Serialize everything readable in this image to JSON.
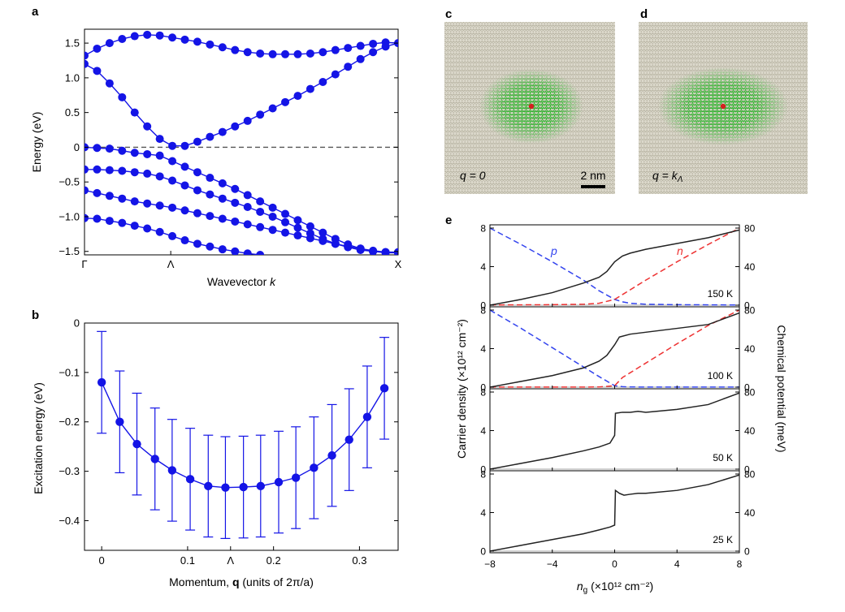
{
  "figure_title": "",
  "chart_data": [
    {
      "id": "a",
      "type": "line",
      "panel_label": "a",
      "xlabel": "Wavevector",
      "xlabel_italic": "k",
      "ylabel": "Energy (eV)",
      "ylim": [
        -1.55,
        1.7
      ],
      "xlim": [
        0,
        20
      ],
      "xticks": [
        {
          "x": 0,
          "label": "Γ"
        },
        {
          "x": 5.5,
          "label": "Λ"
        },
        {
          "x": 20,
          "label": "X"
        }
      ],
      "yticks": [
        {
          "v": 1.5,
          "label": "1.5"
        },
        {
          "v": 1.0,
          "label": "1.0"
        },
        {
          "v": 0.5,
          "label": "0.5"
        },
        {
          "v": 0,
          "label": "0"
        },
        {
          "v": -0.5,
          "label": "−0.5"
        },
        {
          "v": -1.0,
          "label": "−1.0"
        },
        {
          "v": -1.5,
          "label": "−1.5"
        }
      ],
      "reference_line": 0,
      "series": [
        {
          "x": [
            0,
            0.8,
            1.6,
            2.4,
            3.2,
            4.0,
            4.8,
            5.6,
            6.4,
            7.2,
            8.0,
            8.8,
            9.6,
            10.4,
            11.2,
            12.0,
            12.8,
            13.6,
            14.4,
            15.2,
            16.0,
            16.8,
            17.6,
            18.4,
            19.2,
            20
          ],
          "y": [
            1.32,
            1.42,
            1.5,
            1.56,
            1.6,
            1.62,
            1.61,
            1.58,
            1.55,
            1.52,
            1.48,
            1.44,
            1.4,
            1.37,
            1.35,
            1.34,
            1.34,
            1.34,
            1.35,
            1.37,
            1.4,
            1.43,
            1.46,
            1.49,
            1.51,
            1.5
          ]
        },
        {
          "x": [
            0,
            0.8,
            1.6,
            2.4,
            3.2,
            4.0,
            4.8,
            5.6,
            6.4,
            7.2,
            8.0,
            8.8,
            9.6,
            10.4,
            11.2,
            12.0,
            12.8,
            13.6,
            14.4,
            15.2,
            16.0,
            16.8,
            17.6,
            18.4,
            19.2,
            20
          ],
          "y": [
            1.2,
            1.1,
            0.92,
            0.72,
            0.5,
            0.3,
            0.12,
            0.02,
            0.02,
            0.08,
            0.15,
            0.22,
            0.3,
            0.38,
            0.47,
            0.56,
            0.65,
            0.74,
            0.84,
            0.94,
            1.05,
            1.16,
            1.27,
            1.37,
            1.45,
            1.5
          ]
        },
        {
          "x": [
            0,
            0.8,
            1.6,
            2.4,
            3.2,
            4.0,
            4.8,
            5.6,
            6.4,
            7.2,
            8.0,
            8.8,
            9.6,
            10.4,
            11.2,
            12.0,
            12.8,
            13.6,
            14.4,
            15.2,
            16.0,
            16.8,
            17.6,
            18.4,
            19.2,
            20
          ],
          "y": [
            0,
            -0.01,
            -0.02,
            -0.05,
            -0.08,
            -0.1,
            -0.12,
            -0.2,
            -0.28,
            -0.36,
            -0.44,
            -0.52,
            -0.6,
            -0.69,
            -0.78,
            -0.87,
            -0.96,
            -1.05,
            -1.14,
            -1.23,
            -1.32,
            -1.4,
            -1.46,
            -1.5,
            -1.52,
            -1.52
          ]
        },
        {
          "x": [
            0,
            0.8,
            1.6,
            2.4,
            3.2,
            4.0,
            4.8,
            5.6,
            6.4,
            7.2,
            8.0,
            8.8,
            9.6,
            10.4,
            11.2,
            12.0,
            12.8,
            13.6,
            14.4,
            15.2,
            16.0,
            16.8,
            17.6,
            18.4,
            19.2,
            20
          ],
          "y": [
            -0.32,
            -0.32,
            -0.33,
            -0.34,
            -0.36,
            -0.38,
            -0.42,
            -0.48,
            -0.55,
            -0.62,
            -0.68,
            -0.74,
            -0.8,
            -0.86,
            -0.93,
            -1.0,
            -1.08,
            -1.16,
            -1.24,
            -1.32,
            -1.39,
            -1.44,
            -1.48,
            -1.5,
            -1.51,
            -1.51
          ]
        },
        {
          "x": [
            0,
            0.8,
            1.6,
            2.4,
            3.2,
            4.0,
            4.8,
            5.6,
            6.4,
            7.2,
            8.0,
            8.8,
            9.6,
            10.4,
            11.2,
            12.0,
            12.8,
            13.6,
            14.4,
            15.2,
            16.0,
            16.8,
            17.6,
            18.4,
            19.2,
            20
          ],
          "y": [
            -0.62,
            -0.66,
            -0.7,
            -0.74,
            -0.78,
            -0.81,
            -0.84,
            -0.87,
            -0.91,
            -0.95,
            -0.99,
            -1.03,
            -1.07,
            -1.11,
            -1.15,
            -1.19,
            -1.23,
            -1.27,
            -1.31,
            -1.35,
            -1.39,
            -1.43,
            -1.46,
            -1.49,
            -1.51,
            -1.52
          ]
        },
        {
          "x": [
            0,
            0.8,
            1.6,
            2.4,
            3.2,
            4.0,
            4.8,
            5.6,
            6.4,
            7.2,
            8.0,
            8.8,
            9.6,
            10.4,
            11.2
          ],
          "y": [
            -1.02,
            -1.03,
            -1.06,
            -1.09,
            -1.13,
            -1.17,
            -1.22,
            -1.28,
            -1.34,
            -1.39,
            -1.43,
            -1.47,
            -1.5,
            -1.53,
            -1.55
          ]
        }
      ]
    },
    {
      "id": "b",
      "type": "scatter",
      "panel_label": "b",
      "xlabel": "Momentum, ",
      "xlabel_bold": "q",
      "xlabel_units": " (units of 2π/a)",
      "ylabel": "Excitation energy (eV)",
      "xlim": [
        -0.02,
        0.345
      ],
      "ylim": [
        -0.46,
        0
      ],
      "xticks": [
        {
          "v": 0,
          "label": "0"
        },
        {
          "v": 0.1,
          "label": "0.1"
        },
        {
          "v": 0.15,
          "label": "Λ"
        },
        {
          "v": 0.2,
          "label": "0.2"
        },
        {
          "v": 0.3,
          "label": "0.3"
        }
      ],
      "yticks": [
        {
          "v": 0,
          "label": "0"
        },
        {
          "v": -0.1,
          "label": "−0.1"
        },
        {
          "v": -0.2,
          "label": "−0.2"
        },
        {
          "v": -0.3,
          "label": "−0.3"
        },
        {
          "v": -0.4,
          "label": "−0.4"
        }
      ],
      "x": [
        0,
        0.021,
        0.041,
        0.062,
        0.082,
        0.103,
        0.124,
        0.144,
        0.165,
        0.185,
        0.206,
        0.226,
        0.247,
        0.268,
        0.288,
        0.309,
        0.329
      ],
      "y": [
        -0.12,
        -0.2,
        -0.245,
        -0.275,
        -0.298,
        -0.316,
        -0.33,
        -0.333,
        -0.332,
        -0.33,
        -0.322,
        -0.313,
        -0.293,
        -0.268,
        -0.236,
        -0.19,
        -0.132
      ],
      "err": [
        0.103,
        0.103,
        0.103,
        0.103,
        0.103,
        0.103,
        0.103,
        0.103,
        0.103,
        0.103,
        0.103,
        0.103,
        0.103,
        0.103,
        0.103,
        0.103,
        0.103
      ],
      "color": "#1414e6"
    },
    {
      "id": "e",
      "type": "line",
      "panel_label": "e",
      "xlabel": "n",
      "xlabel_sub": "g",
      "xlabel_units": " (×10¹² cm⁻²)",
      "ylabel_left": "Carrier density (×10¹² cm⁻²)",
      "ylabel_right": "Chemical potential (meV)",
      "xlim": [
        -8,
        8
      ],
      "xticks": [
        {
          "v": -8,
          "label": "−8"
        },
        {
          "v": -4,
          "label": "−4"
        },
        {
          "v": 0,
          "label": "0"
        },
        {
          "v": 4,
          "label": "4"
        },
        {
          "v": 8,
          "label": "8"
        }
      ],
      "ylim_left": [
        0,
        8
      ],
      "ylim_right": [
        0,
        80
      ],
      "yticks_left": [
        "0",
        "4",
        "8"
      ],
      "yticks_right": [
        "0",
        "40",
        "80"
      ],
      "subpanels": [
        {
          "temp": "150 K",
          "label_p": "p",
          "label_n": "n",
          "mu_x": [
            -8,
            -6,
            -4,
            -2,
            -1,
            -0.5,
            0,
            0.5,
            1,
            2,
            4,
            6,
            8
          ],
          "mu_y": [
            0,
            6,
            13,
            23,
            29,
            35,
            45,
            51,
            54,
            58,
            64,
            70,
            78
          ],
          "p_x": [
            -8,
            -6,
            -4,
            -2,
            -1,
            0,
            0.5,
            1,
            2,
            4,
            8
          ],
          "p_y": [
            8,
            6.3,
            4.5,
            2.6,
            1.5,
            0.6,
            0.35,
            0.2,
            0.1,
            0.05,
            0.02
          ],
          "n_x": [
            -8,
            -4,
            -2,
            -1,
            0,
            0.5,
            1,
            2,
            4,
            6,
            8
          ],
          "n_y": [
            0.02,
            0.05,
            0.1,
            0.2,
            0.6,
            1.1,
            1.6,
            2.6,
            4.5,
            6.3,
            8
          ]
        },
        {
          "temp": "100 K",
          "label_p": "",
          "label_n": "",
          "mu_x": [
            -8,
            -6,
            -4,
            -2,
            -1,
            -0.5,
            0,
            0.3,
            1,
            2,
            4,
            6,
            8
          ],
          "mu_y": [
            0,
            6,
            12,
            20,
            27,
            33,
            44,
            52,
            55,
            57,
            61,
            65,
            77
          ],
          "p_x": [
            -8,
            -6,
            -4,
            -2,
            -1,
            0,
            0.5,
            1,
            2,
            4,
            8
          ],
          "p_y": [
            8,
            6.1,
            4.1,
            2.1,
            1.1,
            0.15,
            0.05,
            0.02,
            0.01,
            0.01,
            0.01
          ],
          "n_x": [
            -8,
            -4,
            -2,
            -1,
            0,
            0.5,
            1,
            2,
            4,
            6,
            8
          ],
          "n_y": [
            0.01,
            0.01,
            0.01,
            0.02,
            0.15,
            1.0,
            1.5,
            2.5,
            4.5,
            6.4,
            8
          ]
        },
        {
          "temp": "50 K",
          "label_p": "",
          "label_n": "",
          "mu_x": [
            -8,
            -6,
            -4,
            -2,
            -1,
            -0.3,
            0,
            0.05,
            0.5,
            1,
            1.5,
            2,
            4,
            6,
            8
          ],
          "mu_y": [
            0,
            6,
            12,
            19,
            23,
            27,
            35,
            58,
            59,
            59,
            60,
            59,
            62,
            67,
            79
          ],
          "p_x": [],
          "p_y": [],
          "n_x": [],
          "n_y": []
        },
        {
          "temp": "25 K",
          "label_p": "",
          "label_n": "",
          "mu_x": [
            -8,
            -6,
            -4,
            -2,
            -1,
            -0.3,
            0,
            0.05,
            0.3,
            0.6,
            1,
            1.5,
            2,
            4,
            6,
            8
          ],
          "mu_y": [
            0,
            6,
            12,
            18,
            22,
            25,
            27,
            63,
            60,
            58,
            59,
            60,
            60,
            63,
            69,
            79
          ],
          "p_x": [],
          "p_y": [],
          "n_x": [],
          "n_y": []
        }
      ]
    }
  ],
  "panel_c": {
    "panel_label": "c",
    "label": "q = 0",
    "scale_bar": "2 nm"
  },
  "panel_d": {
    "panel_label": "d",
    "label": "q = k",
    "label_sub": "Λ"
  },
  "colors": {
    "band": "#1414e6",
    "p_line": "#3344ee",
    "n_line": "#ee3333",
    "mu_line": "#222222",
    "green": "#2fbf2f",
    "lattice": "#c8c4b4"
  }
}
